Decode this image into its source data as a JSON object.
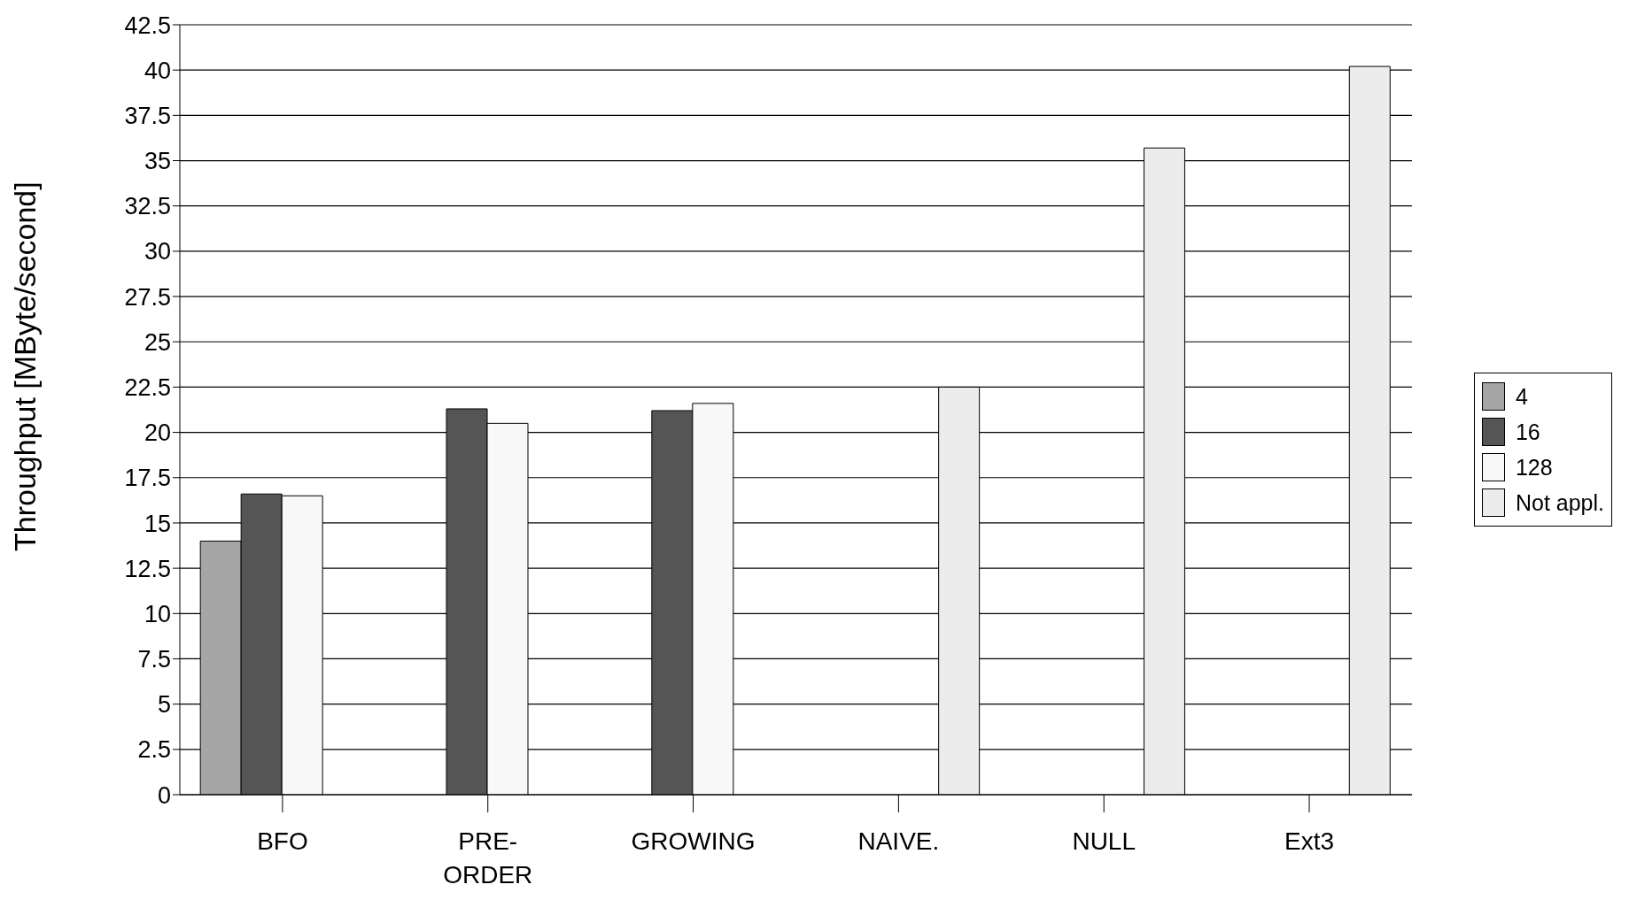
{
  "chart_data": {
    "type": "bar",
    "ylabel": "Throughput [MByte/second]",
    "categories": [
      "BFO",
      "PRE-ORDER",
      "GROWING",
      "NAIVE.",
      "NULL",
      "Ext3"
    ],
    "series": [
      {
        "name": "4",
        "color": "#a6a6a6",
        "values": [
          14.0,
          null,
          null,
          null,
          null,
          null
        ]
      },
      {
        "name": "16",
        "color": "#555555",
        "values": [
          16.6,
          21.3,
          21.2,
          null,
          null,
          null
        ]
      },
      {
        "name": "128",
        "color": "#f8f8f8",
        "values": [
          16.5,
          20.5,
          21.6,
          null,
          null,
          null
        ]
      },
      {
        "name": "Not appl.",
        "color": "#ececec",
        "values": [
          null,
          null,
          null,
          22.5,
          35.7,
          40.2
        ]
      }
    ],
    "ylim": [
      0,
      42.5
    ],
    "yticks": [
      0,
      {
        "value": 2.5,
        "label": "2.5"
      },
      5,
      {
        "value": 7.5,
        "label": "7.5"
      },
      10,
      {
        "value": 12.5,
        "label": "12.5"
      },
      15,
      {
        "value": 17.5,
        "label": "17.5"
      },
      20,
      {
        "value": 22.5,
        "label": "22.5"
      },
      25,
      {
        "value": 27.5,
        "label": "27.5"
      },
      30,
      {
        "value": 32.5,
        "label": "32.5"
      },
      35,
      {
        "value": 37.5,
        "label": "37.5"
      },
      40,
      {
        "value": 42.5,
        "label": "42.5"
      }
    ],
    "grid": "y",
    "legend": "right"
  }
}
